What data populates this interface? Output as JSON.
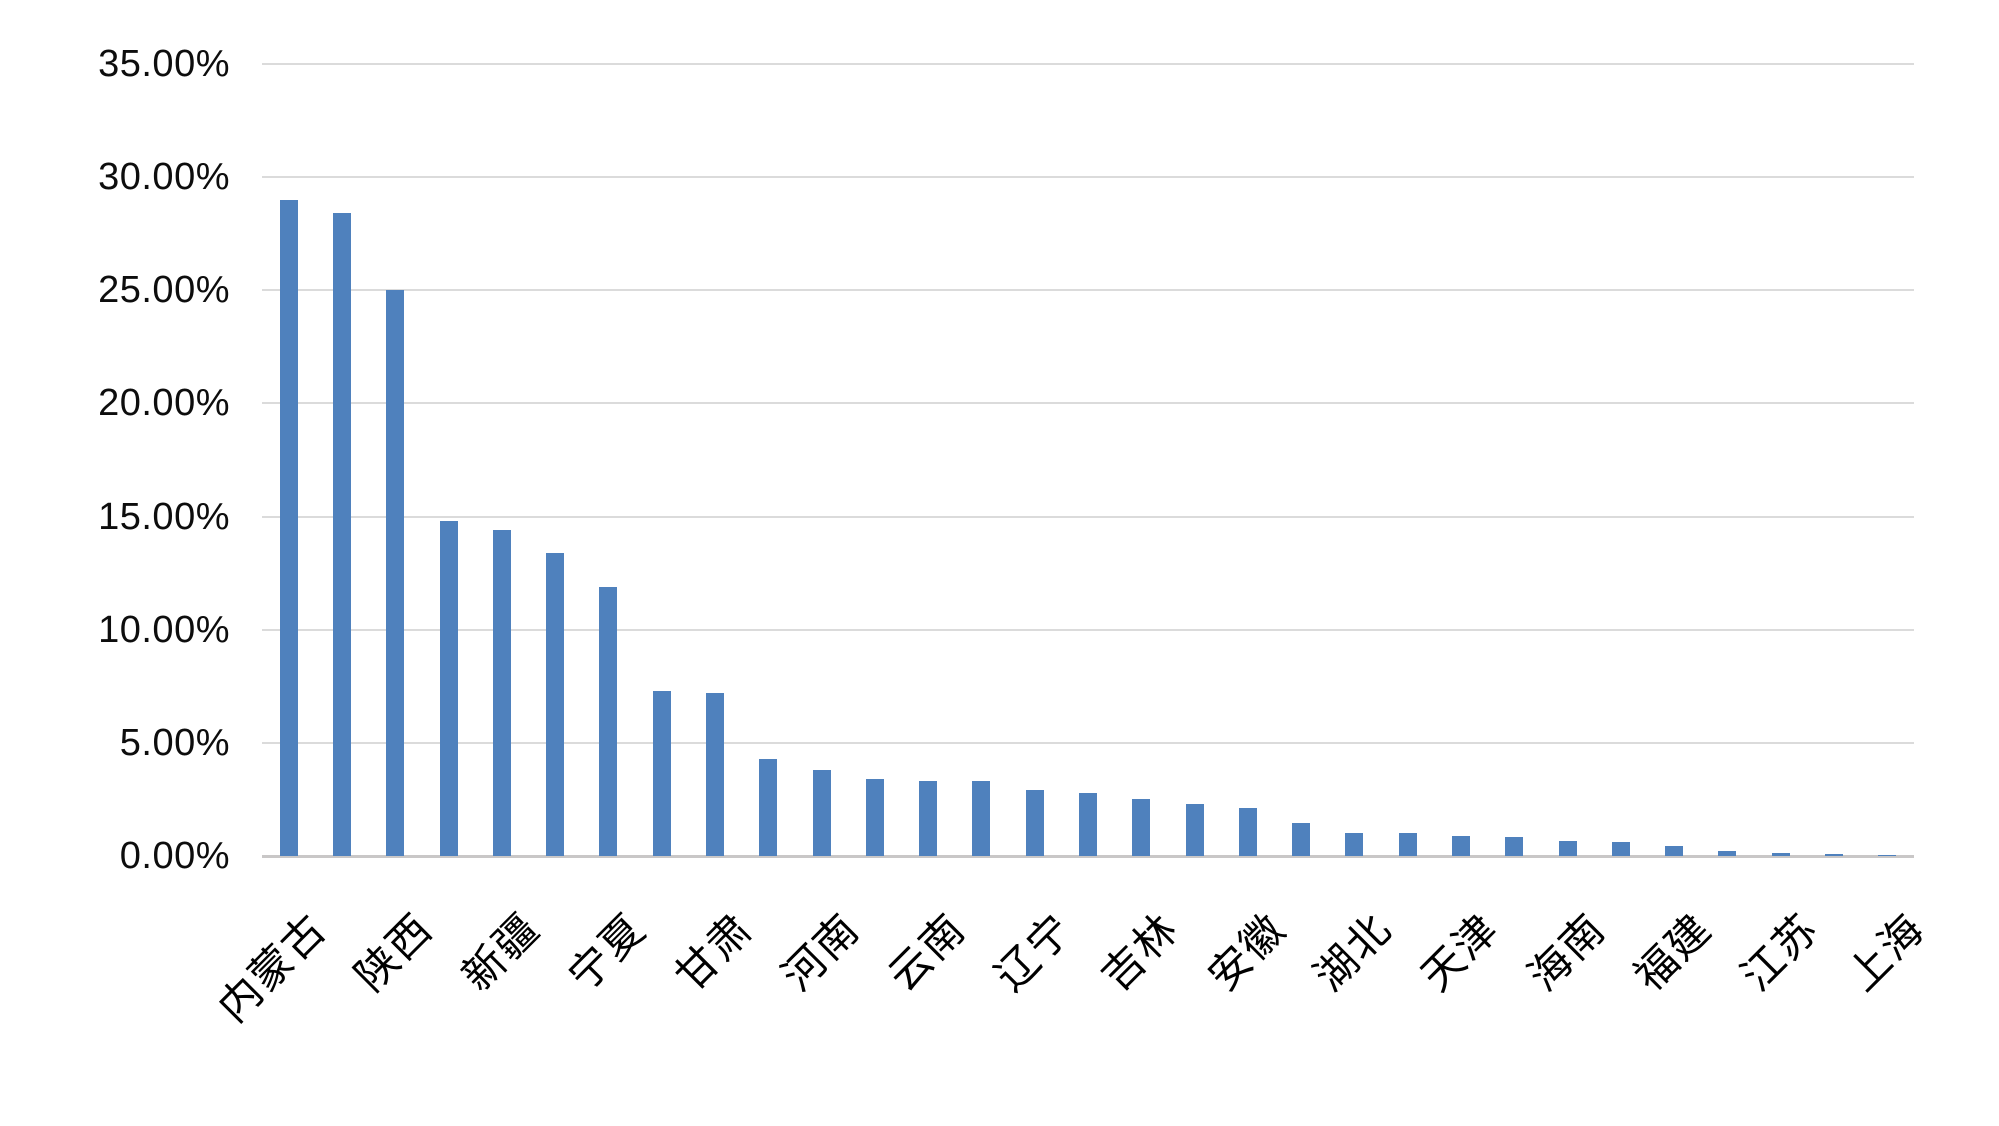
{
  "chart_data": {
    "type": "bar",
    "title": "",
    "xlabel": "",
    "ylabel": "",
    "legend": "none",
    "grid": "horizontal",
    "ylim_pct": [
      0,
      35
    ],
    "y_tick_step_pct": 5,
    "y_tick_labels": [
      "35.00%",
      "30.00%",
      "25.00%",
      "20.00%",
      "15.00%",
      "10.00%",
      "5.00%",
      "0.00%"
    ],
    "bar_count": 31,
    "x_tick_label_interval": 2,
    "x_tick_labels": [
      "内蒙古",
      "陕西",
      "新疆",
      "宁夏",
      "甘肃",
      "河南",
      "云南",
      "辽宁",
      "吉林",
      "安徽",
      "湖北",
      "天津",
      "海南",
      "福建",
      "江苏",
      "上海"
    ],
    "values_pct": [
      29.0,
      28.4,
      25.0,
      14.8,
      14.4,
      13.4,
      11.9,
      7.3,
      7.2,
      4.3,
      3.8,
      3.4,
      3.3,
      3.3,
      2.9,
      2.8,
      2.5,
      2.3,
      2.1,
      1.45,
      1.0,
      1.0,
      0.9,
      0.85,
      0.65,
      0.6,
      0.45,
      0.2,
      0.15,
      0.1,
      0.05
    ],
    "colors": {
      "bar": "#4f81bd",
      "gridline": "#dbdbdb",
      "axis_line": "#c9c7c7",
      "tick_text": "#0d0d0d",
      "background": "#ffffff"
    }
  }
}
